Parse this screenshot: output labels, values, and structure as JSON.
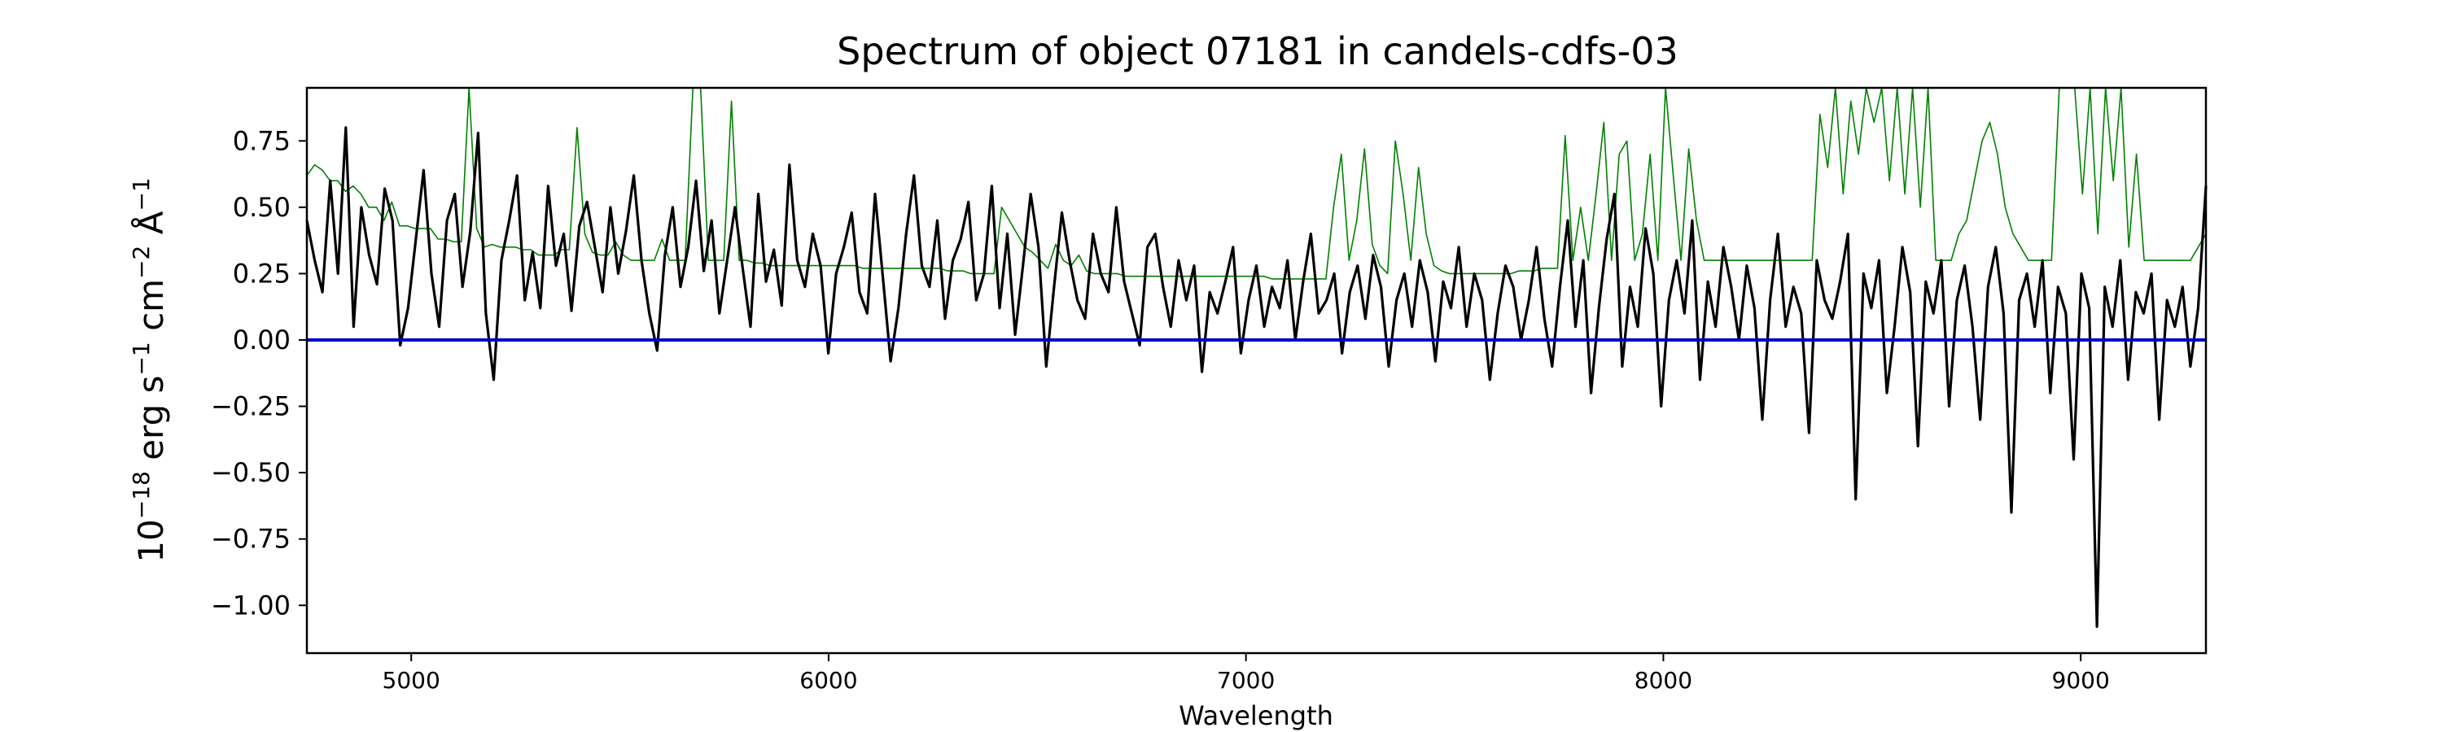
{
  "chart_data": {
    "type": "line",
    "title": "Spectrum of object 07181 in candels-cdfs-03",
    "xlabel": "Wavelength",
    "ylabel": {
      "base": "10",
      "exp": "−18",
      "unit1": " erg s",
      "unit1_exp": "−1",
      "unit2": " cm",
      "unit2_exp": "−2",
      "unit3": " Å",
      "unit3_exp": "−1"
    },
    "xlim": [
      4750,
      9300
    ],
    "ylim": [
      -1.18,
      0.95
    ],
    "grid": false,
    "x_ticks": [
      5000,
      6000,
      7000,
      8000,
      9000
    ],
    "x_tick_labels": [
      "5000",
      "6000",
      "7000",
      "8000",
      "9000"
    ],
    "y_ticks": [
      0.75,
      0.5,
      0.25,
      0.0,
      -0.25,
      -0.5,
      -0.75,
      -1.0
    ],
    "y_tick_labels": [
      "0.75",
      "0.50",
      "0.25",
      "0.00",
      "−0.25",
      "−0.50",
      "−0.75",
      "−1.00"
    ],
    "series": [
      {
        "color": "#008000",
        "role": "error",
        "values": [
          0.62,
          0.66,
          0.64,
          0.6,
          0.6,
          0.56,
          0.58,
          0.55,
          0.5,
          0.5,
          0.45,
          0.52,
          0.43,
          0.43,
          0.42,
          0.42,
          0.42,
          0.38,
          0.38,
          0.37,
          0.37,
          0.95,
          0.42,
          0.35,
          0.36,
          0.35,
          0.35,
          0.35,
          0.34,
          0.34,
          0.32,
          0.32,
          0.32,
          0.34,
          0.34,
          0.8,
          0.4,
          0.33,
          0.32,
          0.32,
          0.37,
          0.32,
          0.3,
          0.3,
          0.3,
          0.3,
          0.38,
          0.3,
          0.3,
          0.3,
          0.95,
          0.95,
          0.3,
          0.3,
          0.3,
          0.9,
          0.3,
          0.3,
          0.29,
          0.29,
          0.28,
          0.28,
          0.28,
          0.28,
          0.28,
          0.28,
          0.28,
          0.28,
          0.28,
          0.28,
          0.28,
          0.28,
          0.27,
          0.27,
          0.27,
          0.27,
          0.27,
          0.27,
          0.27,
          0.27,
          0.27,
          0.27,
          0.27,
          0.26,
          0.26,
          0.26,
          0.25,
          0.25,
          0.25,
          0.25,
          0.5,
          0.45,
          0.4,
          0.35,
          0.33,
          0.3,
          0.27,
          0.36,
          0.3,
          0.28,
          0.32,
          0.26,
          0.25,
          0.25,
          0.25,
          0.25,
          0.24,
          0.24,
          0.24,
          0.24,
          0.24,
          0.24,
          0.24,
          0.24,
          0.24,
          0.24,
          0.24,
          0.24,
          0.24,
          0.24,
          0.24,
          0.24,
          0.24,
          0.24,
          0.24,
          0.23,
          0.23,
          0.23,
          0.23,
          0.23,
          0.23,
          0.23,
          0.23,
          0.5,
          0.7,
          0.3,
          0.45,
          0.72,
          0.36,
          0.28,
          0.25,
          0.75,
          0.55,
          0.3,
          0.65,
          0.4,
          0.28,
          0.26,
          0.25,
          0.25,
          0.25,
          0.25,
          0.25,
          0.25,
          0.25,
          0.25,
          0.25,
          0.26,
          0.26,
          0.26,
          0.27,
          0.27,
          0.27,
          0.77,
          0.3,
          0.5,
          0.3,
          0.55,
          0.82,
          0.3,
          0.7,
          0.75,
          0.3,
          0.4,
          0.7,
          0.3,
          0.95,
          0.62,
          0.3,
          0.72,
          0.45,
          0.3,
          0.3,
          0.3,
          0.3,
          0.3,
          0.3,
          0.3,
          0.3,
          0.3,
          0.3,
          0.3,
          0.3,
          0.3,
          0.3,
          0.3,
          0.85,
          0.65,
          0.95,
          0.55,
          0.9,
          0.7,
          0.95,
          0.82,
          0.95,
          0.6,
          0.95,
          0.55,
          0.95,
          0.5,
          0.95,
          0.3,
          0.3,
          0.3,
          0.4,
          0.45,
          0.6,
          0.75,
          0.82,
          0.7,
          0.5,
          0.4,
          0.35,
          0.3,
          0.3,
          0.3,
          0.3,
          0.95,
          0.95,
          0.95,
          0.55,
          0.95,
          0.4,
          0.95,
          0.6,
          0.95,
          0.35,
          0.7,
          0.3,
          0.3,
          0.3,
          0.3,
          0.3,
          0.3,
          0.3,
          0.35,
          0.4
        ]
      },
      {
        "color": "#000000",
        "role": "flux",
        "values": [
          0.45,
          0.3,
          0.18,
          0.6,
          0.25,
          0.8,
          0.05,
          0.5,
          0.32,
          0.21,
          0.57,
          0.45,
          -0.02,
          0.12,
          0.38,
          0.64,
          0.25,
          0.05,
          0.45,
          0.55,
          0.2,
          0.41,
          0.78,
          0.1,
          -0.15,
          0.3,
          0.45,
          0.62,
          0.15,
          0.33,
          0.12,
          0.58,
          0.28,
          0.4,
          0.11,
          0.43,
          0.52,
          0.35,
          0.18,
          0.5,
          0.25,
          0.41,
          0.62,
          0.3,
          0.1,
          -0.04,
          0.32,
          0.5,
          0.2,
          0.35,
          0.6,
          0.26,
          0.45,
          0.1,
          0.3,
          0.5,
          0.27,
          0.05,
          0.55,
          0.22,
          0.34,
          0.13,
          0.66,
          0.3,
          0.2,
          0.4,
          0.28,
          -0.05,
          0.25,
          0.35,
          0.48,
          0.18,
          0.1,
          0.55,
          0.24,
          -0.08,
          0.12,
          0.4,
          0.62,
          0.28,
          0.2,
          0.45,
          0.08,
          0.3,
          0.38,
          0.52,
          0.15,
          0.25,
          0.58,
          0.12,
          0.4,
          0.02,
          0.28,
          0.55,
          0.35,
          -0.1,
          0.2,
          0.48,
          0.3,
          0.15,
          0.08,
          0.4,
          0.25,
          0.18,
          0.5,
          0.22,
          0.1,
          -0.02,
          0.35,
          0.4,
          0.2,
          0.05,
          0.3,
          0.15,
          0.28,
          -0.12,
          0.18,
          0.1,
          0.22,
          0.35,
          -0.05,
          0.15,
          0.28,
          0.05,
          0.2,
          0.12,
          0.3,
          0.0,
          0.22,
          0.4,
          0.1,
          0.15,
          0.25,
          -0.05,
          0.18,
          0.28,
          0.08,
          0.32,
          0.2,
          -0.1,
          0.15,
          0.25,
          0.05,
          0.3,
          0.18,
          -0.08,
          0.22,
          0.12,
          0.35,
          0.05,
          0.25,
          0.15,
          -0.15,
          0.1,
          0.28,
          0.2,
          0.0,
          0.15,
          0.35,
          0.08,
          -0.1,
          0.2,
          0.45,
          0.05,
          0.3,
          -0.2,
          0.12,
          0.38,
          0.55,
          -0.1,
          0.2,
          0.05,
          0.42,
          0.25,
          -0.25,
          0.15,
          0.3,
          0.1,
          0.45,
          -0.15,
          0.22,
          0.05,
          0.35,
          0.2,
          0.0,
          0.28,
          0.12,
          -0.3,
          0.15,
          0.4,
          0.05,
          0.2,
          0.1,
          -0.35,
          0.3,
          0.15,
          0.08,
          0.22,
          0.4,
          -0.6,
          0.25,
          0.12,
          0.3,
          -0.2,
          0.05,
          0.35,
          0.18,
          -0.4,
          0.22,
          0.1,
          0.3,
          -0.25,
          0.15,
          0.28,
          0.05,
          -0.3,
          0.2,
          0.35,
          0.1,
          -0.65,
          0.15,
          0.25,
          0.05,
          0.3,
          -0.2,
          0.2,
          0.1,
          -0.45,
          0.25,
          0.12,
          -1.08,
          0.2,
          0.05,
          0.3,
          -0.15,
          0.18,
          0.1,
          0.25,
          -0.3,
          0.15,
          0.05,
          0.2,
          -0.1,
          0.12,
          0.58
        ]
      },
      {
        "color": "#0000cc",
        "role": "zero",
        "values": [
          0.0,
          0.0
        ]
      }
    ]
  }
}
